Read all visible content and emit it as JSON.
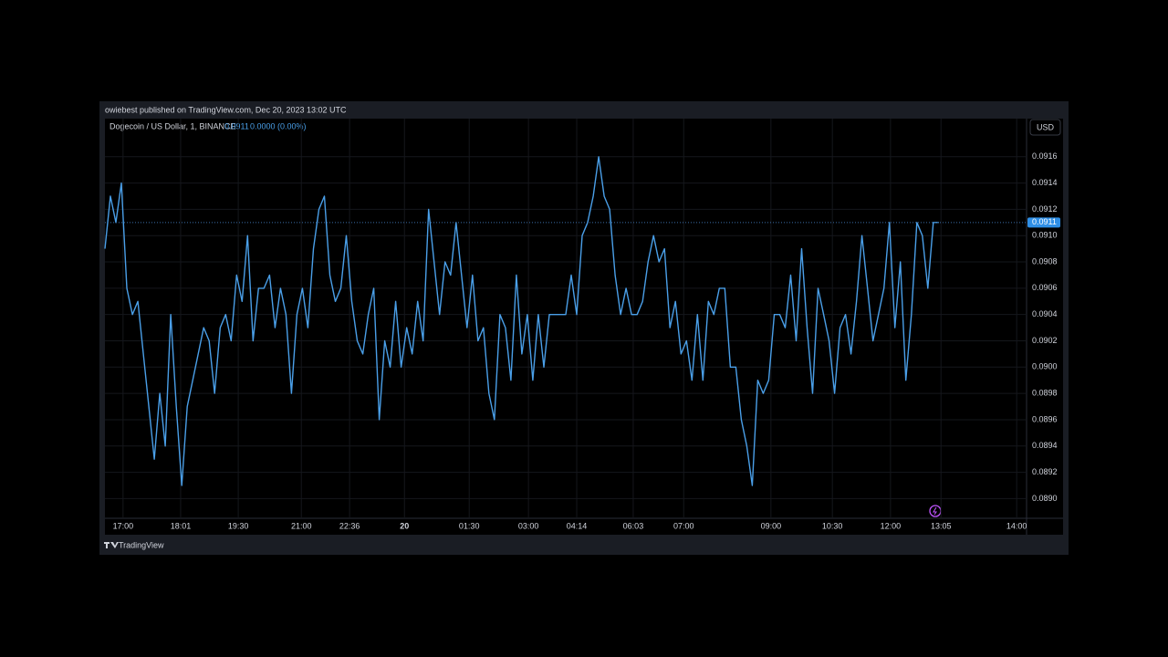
{
  "chart_data": {
    "type": "line",
    "published": "owiebest published on TradingView.com, Dec 20, 2023 13:02 UTC",
    "symbol": "Dogecoin / US Dollar, 1, BINANCE",
    "last_price": 0.0911,
    "change": "0.0000 (0.00%)",
    "currency": "USD",
    "brand": "TradingView",
    "color": "#4a9fe8",
    "grid": true,
    "xlim": [
      0,
      168
    ],
    "ylim": [
      0.08885,
      0.09189
    ],
    "yticks": [
      {
        "value": 0.089,
        "label": "0.0890"
      },
      0.0892,
      0.0894,
      0.0896,
      0.0898,
      {
        "value": 0.09,
        "label": "0.0900"
      },
      0.0902,
      0.0904,
      0.0906,
      0.0908,
      {
        "value": 0.091,
        "label": "0.0910"
      },
      0.0912,
      0.0914,
      0.0916
    ],
    "xticks": [
      {
        "value": 3.3,
        "label": "17:00"
      },
      {
        "value": 13.8,
        "label": "18:01"
      },
      {
        "value": 24.3,
        "label": "19:30"
      },
      {
        "value": 35.8,
        "label": "21:00"
      },
      {
        "value": 44.6,
        "label": "22:36"
      },
      {
        "value": 54.6,
        "label": "20"
      },
      {
        "value": 66.4,
        "label": "01:30"
      },
      {
        "value": 77.2,
        "label": "03:00"
      },
      {
        "value": 86.0,
        "label": "04:14"
      },
      {
        "value": 96.3,
        "label": "06:03"
      },
      {
        "value": 105.5,
        "label": "07:00"
      },
      {
        "value": 121.4,
        "label": "09:00"
      },
      {
        "value": 132.6,
        "label": "10:30"
      },
      {
        "value": 143.2,
        "label": "12:00"
      },
      {
        "value": 152.4,
        "label": "13:05"
      },
      {
        "value": 166.2,
        "label": "14:00"
      }
    ],
    "values": [
      0.0909,
      0.0913,
      0.0911,
      0.0914,
      0.0906,
      0.0904,
      0.0905,
      0.0901,
      0.0897,
      0.0893,
      0.0898,
      0.0894,
      0.0904,
      0.0897,
      0.0891,
      0.0897,
      0.0899,
      0.0901,
      0.0903,
      0.0902,
      0.0898,
      0.0903,
      0.0904,
      0.0902,
      0.0907,
      0.0905,
      0.091,
      0.0902,
      0.0906,
      0.0906,
      0.0907,
      0.0903,
      0.0906,
      0.0904,
      0.0898,
      0.0904,
      0.0906,
      0.0903,
      0.0909,
      0.0912,
      0.0913,
      0.0907,
      0.0905,
      0.0906,
      0.091,
      0.0905,
      0.0902,
      0.0901,
      0.0904,
      0.0906,
      0.0896,
      0.0902,
      0.09,
      0.0905,
      0.09,
      0.0903,
      0.0901,
      0.0905,
      0.0902,
      0.0912,
      0.0908,
      0.0904,
      0.0908,
      0.0907,
      0.0911,
      0.0907,
      0.0903,
      0.0907,
      0.0902,
      0.0903,
      0.0898,
      0.0896,
      0.0904,
      0.0903,
      0.0899,
      0.0907,
      0.0901,
      0.0904,
      0.0899,
      0.0904,
      0.09,
      0.0904,
      0.0904,
      0.0904,
      0.0904,
      0.0907,
      0.0904,
      0.091,
      0.0911,
      0.0913,
      0.0916,
      0.0913,
      0.0912,
      0.0907,
      0.0904,
      0.0906,
      0.0904,
      0.0904,
      0.0905,
      0.0908,
      0.091,
      0.0908,
      0.0909,
      0.0903,
      0.0905,
      0.0901,
      0.0902,
      0.0899,
      0.0904,
      0.0899,
      0.0905,
      0.0904,
      0.0906,
      0.0906,
      0.09,
      0.09,
      0.0896,
      0.0894,
      0.0891,
      0.0899,
      0.0898,
      0.0899,
      0.0904,
      0.0904,
      0.0903,
      0.0907,
      0.0902,
      0.0909,
      0.0903,
      0.0898,
      0.0906,
      0.0904,
      0.0902,
      0.0898,
      0.0903,
      0.0904,
      0.0901,
      0.0905,
      0.091,
      0.0906,
      0.0902,
      0.0904,
      0.0906,
      0.0911,
      0.0903,
      0.0908,
      0.0899,
      0.0904,
      0.0911,
      0.091,
      0.0906,
      0.0911,
      0.0911
    ]
  }
}
